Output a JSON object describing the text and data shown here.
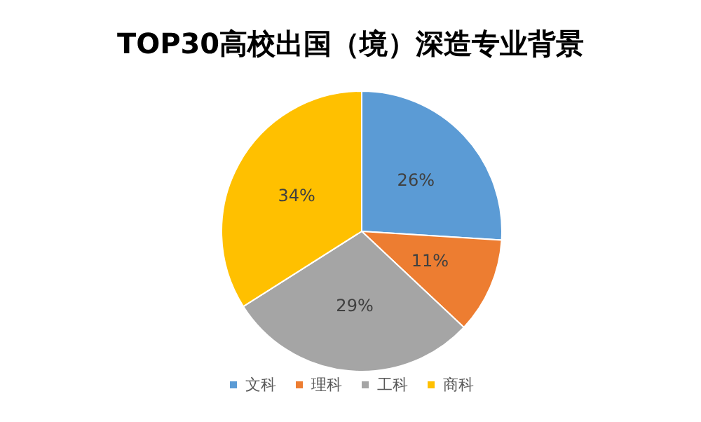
{
  "chart_data": {
    "type": "pie",
    "title": "TOP30高校出国（境）深造专业背景",
    "categories": [
      "文科",
      "理科",
      "工科",
      "商科"
    ],
    "values": [
      26,
      11,
      29,
      34
    ],
    "colors": [
      "#5b9bd5",
      "#ed7d31",
      "#a5a5a5",
      "#ffc000"
    ],
    "value_labels": [
      "26%",
      "11%",
      "29%",
      "34%"
    ],
    "legend": "bottom"
  }
}
